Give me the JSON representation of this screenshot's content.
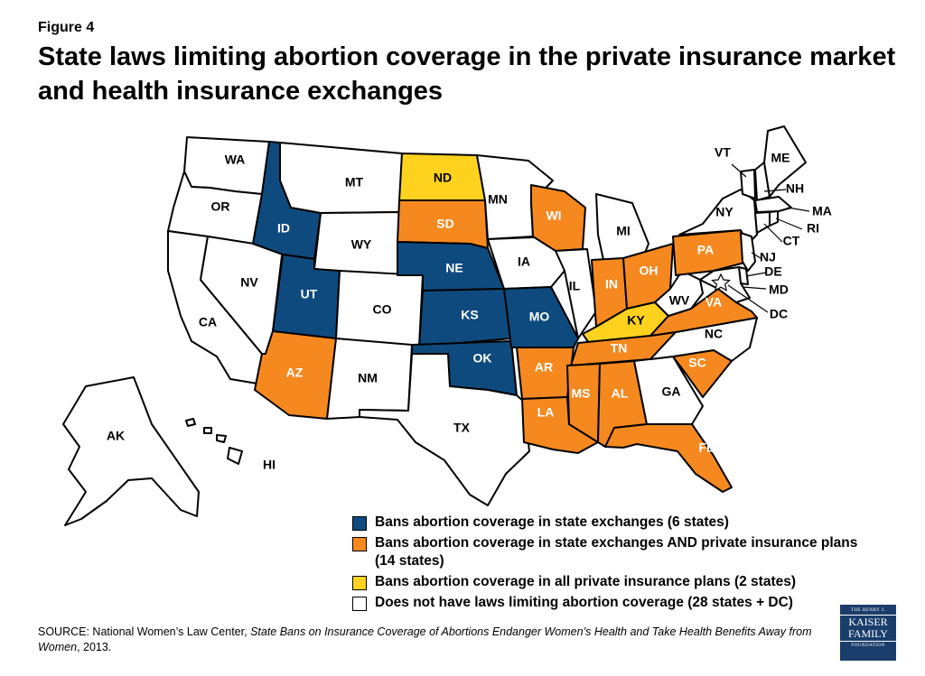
{
  "figure_label": "Figure 4",
  "title": "State laws limiting abortion coverage in the private insurance market and health insurance exchanges",
  "colors": {
    "exchanges": "#0e4a7e",
    "exchanges_and_private": "#f5891f",
    "all_private": "#ffd21f",
    "none": "#ffffff",
    "outline": "#000000"
  },
  "legend": [
    {
      "key": "exchanges",
      "label": "Bans abortion coverage in state exchanges (6 states)"
    },
    {
      "key": "exchanges_and_private",
      "label": "Bans abortion coverage in state exchanges AND private insurance plans (14 states)"
    },
    {
      "key": "all_private",
      "label": "Bans abortion coverage in all private insurance plans (2 states)"
    },
    {
      "key": "none",
      "label": "Does not have laws limiting abortion coverage (28 states + DC)"
    }
  ],
  "states": {
    "WA": "none",
    "OR": "none",
    "CA": "none",
    "NV": "none",
    "ID": "exchanges",
    "MT": "none",
    "WY": "none",
    "UT": "exchanges",
    "AZ": "exchanges_and_private",
    "CO": "none",
    "NM": "none",
    "ND": "all_private",
    "SD": "exchanges_and_private",
    "NE": "exchanges",
    "KS": "exchanges",
    "OK": "exchanges",
    "TX": "none",
    "MN": "none",
    "IA": "none",
    "MO": "exchanges",
    "AR": "exchanges_and_private",
    "LA": "exchanges_and_private",
    "WI": "exchanges_and_private",
    "IL": "none",
    "MS": "exchanges_and_private",
    "MI": "none",
    "IN": "exchanges_and_private",
    "KY": "all_private",
    "TN": "exchanges_and_private",
    "AL": "exchanges_and_private",
    "OH": "exchanges_and_private",
    "WV": "none",
    "VA": "exchanges_and_private",
    "NC": "none",
    "SC": "exchanges_and_private",
    "GA": "none",
    "FL": "exchanges_and_private",
    "PA": "exchanges_and_private",
    "NY": "none",
    "VT": "none",
    "NH": "none",
    "ME": "none",
    "MA": "none",
    "RI": "none",
    "CT": "none",
    "NJ": "none",
    "DE": "none",
    "MD": "none",
    "DC": "none",
    "AK": "none",
    "HI": "none"
  },
  "source": {
    "prefix": "SOURCE:  National Women’s Law Center, ",
    "title_italic": "State Bans on Insurance Coverage of Abortions Endanger Women’s Health and Take Health Benefits Away from Women",
    "suffix": ", 2013."
  },
  "logo": {
    "line1": "THE HENRY J.",
    "line2": "KAISER",
    "line3": "FAMILY",
    "line4": "FOUNDATION"
  }
}
